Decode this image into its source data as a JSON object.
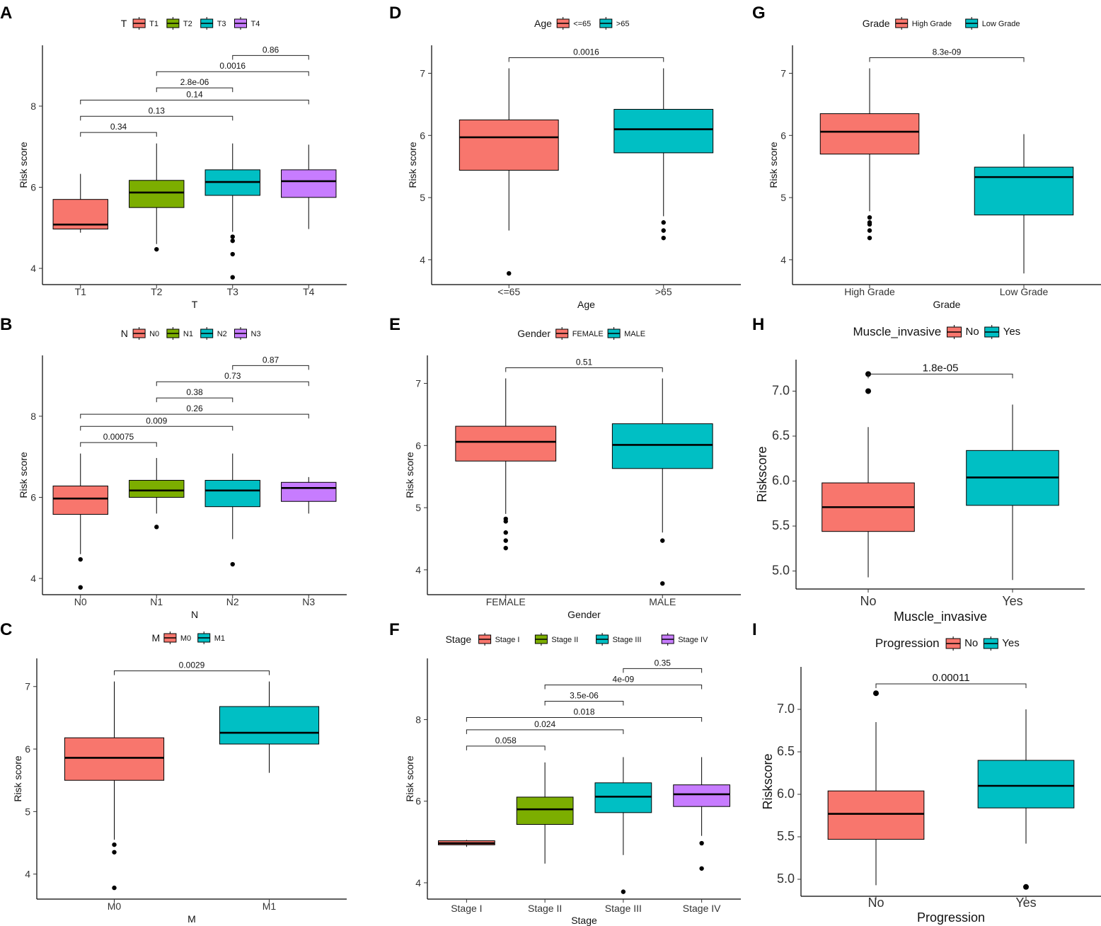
{
  "figure": {
    "colors": {
      "red": "#F8766D",
      "green": "#7CAE00",
      "teal": "#00BFC4",
      "purple": "#C77CFF"
    }
  },
  "chart_data": [
    {
      "panel": "A",
      "type": "box",
      "legend_title": "T",
      "categories": [
        "T1",
        "T2",
        "T3",
        "T4"
      ],
      "colors": [
        "#F8766D",
        "#7CAE00",
        "#00BFC4",
        "#C77CFF"
      ],
      "xlabel": "T",
      "ylabel": "Risk score",
      "ylim": [
        3.6,
        9.5
      ],
      "yticks": [
        "4",
        "6",
        "8"
      ],
      "boxes": [
        {
          "q1": 4.97,
          "median": 5.08,
          "q3": 5.7,
          "lo": 4.88,
          "hi": 6.33,
          "outliers": []
        },
        {
          "q1": 5.5,
          "median": 5.87,
          "q3": 6.17,
          "lo": 4.6,
          "hi": 7.08,
          "outliers": [
            4.47
          ]
        },
        {
          "q1": 5.8,
          "median": 6.13,
          "q3": 6.43,
          "lo": 4.9,
          "hi": 7.08,
          "outliers": [
            4.78,
            4.68,
            4.35,
            3.78
          ]
        },
        {
          "q1": 5.75,
          "median": 6.15,
          "q3": 6.43,
          "lo": 4.97,
          "hi": 7.05,
          "outliers": []
        }
      ],
      "comparisons": [
        {
          "a": 0,
          "b": 1,
          "label": "0.34",
          "y": 7.35
        },
        {
          "a": 0,
          "b": 2,
          "label": "0.13",
          "y": 7.75
        },
        {
          "a": 0,
          "b": 3,
          "label": "0.14",
          "y": 8.15
        },
        {
          "a": 1,
          "b": 2,
          "label": "2.8e-06",
          "y": 8.45
        },
        {
          "a": 1,
          "b": 3,
          "label": "0.0016",
          "y": 8.85
        },
        {
          "a": 2,
          "b": 3,
          "label": "0.86",
          "y": 9.25
        }
      ]
    },
    {
      "panel": "B",
      "type": "box",
      "legend_title": "N",
      "categories": [
        "N0",
        "N1",
        "N2",
        "N3"
      ],
      "colors": [
        "#F8766D",
        "#7CAE00",
        "#00BFC4",
        "#C77CFF"
      ],
      "xlabel": "N",
      "ylabel": "Risk score",
      "ylim": [
        3.6,
        9.5
      ],
      "yticks": [
        "4",
        "6",
        "8"
      ],
      "boxes": [
        {
          "q1": 5.58,
          "median": 5.97,
          "q3": 6.28,
          "lo": 4.6,
          "hi": 7.08,
          "outliers": [
            4.47,
            3.78
          ]
        },
        {
          "q1": 6.0,
          "median": 6.17,
          "q3": 6.42,
          "lo": 5.6,
          "hi": 6.97,
          "outliers": [
            5.27
          ]
        },
        {
          "q1": 5.77,
          "median": 6.17,
          "q3": 6.42,
          "lo": 4.97,
          "hi": 7.08,
          "outliers": [
            4.35
          ]
        },
        {
          "q1": 5.9,
          "median": 6.23,
          "q3": 6.37,
          "lo": 5.6,
          "hi": 6.5,
          "outliers": []
        }
      ],
      "comparisons": [
        {
          "a": 0,
          "b": 1,
          "label": "0.00075",
          "y": 7.35
        },
        {
          "a": 0,
          "b": 2,
          "label": "0.009",
          "y": 7.75
        },
        {
          "a": 0,
          "b": 3,
          "label": "0.26",
          "y": 8.05
        },
        {
          "a": 1,
          "b": 2,
          "label": "0.38",
          "y": 8.45
        },
        {
          "a": 1,
          "b": 3,
          "label": "0.73",
          "y": 8.85
        },
        {
          "a": 2,
          "b": 3,
          "label": "0.87",
          "y": 9.25
        }
      ]
    },
    {
      "panel": "C",
      "type": "box",
      "legend_title": "M",
      "categories": [
        "M0",
        "M1"
      ],
      "colors": [
        "#F8766D",
        "#00BFC4"
      ],
      "xlabel": "M",
      "ylabel": "Risk score",
      "ylim": [
        3.6,
        7.45
      ],
      "yticks": [
        "4",
        "5",
        "6",
        "7"
      ],
      "boxes": [
        {
          "q1": 5.5,
          "median": 5.86,
          "q3": 6.18,
          "lo": 4.55,
          "hi": 7.08,
          "outliers": [
            4.47,
            4.35,
            3.78
          ]
        },
        {
          "q1": 6.08,
          "median": 6.26,
          "q3": 6.68,
          "lo": 5.62,
          "hi": 7.08,
          "outliers": []
        }
      ],
      "comparisons": [
        {
          "a": 0,
          "b": 1,
          "label": "0.0029",
          "y": 7.25
        }
      ]
    },
    {
      "panel": "D",
      "type": "box",
      "legend_title": "Age",
      "categories": [
        "<=65",
        ">65"
      ],
      "colors": [
        "#F8766D",
        "#00BFC4"
      ],
      "xlabel": "Age",
      "ylabel": "Risk score",
      "ylim": [
        3.6,
        7.45
      ],
      "yticks": [
        "4",
        "5",
        "6",
        "7"
      ],
      "boxes": [
        {
          "q1": 5.44,
          "median": 5.97,
          "q3": 6.25,
          "lo": 4.47,
          "hi": 7.08,
          "outliers": [
            3.78
          ]
        },
        {
          "q1": 5.72,
          "median": 6.1,
          "q3": 6.42,
          "lo": 4.7,
          "hi": 7.08,
          "outliers": [
            4.6,
            4.47,
            4.35
          ]
        }
      ],
      "comparisons": [
        {
          "a": 0,
          "b": 1,
          "label": "0.0016",
          "y": 7.25
        }
      ]
    },
    {
      "panel": "E",
      "type": "box",
      "legend_title": "Gender",
      "categories": [
        "FEMALE",
        "MALE"
      ],
      "colors": [
        "#F8766D",
        "#00BFC4"
      ],
      "xlabel": "Gender",
      "ylabel": "Risk score",
      "ylim": [
        3.6,
        7.45
      ],
      "yticks": [
        "4",
        "5",
        "6",
        "7"
      ],
      "boxes": [
        {
          "q1": 5.75,
          "median": 6.06,
          "q3": 6.31,
          "lo": 4.9,
          "hi": 7.08,
          "outliers": [
            4.82,
            4.78,
            4.6,
            4.47,
            4.35
          ]
        },
        {
          "q1": 5.63,
          "median": 6.01,
          "q3": 6.35,
          "lo": 4.6,
          "hi": 7.08,
          "outliers": [
            4.47,
            3.78
          ]
        }
      ],
      "comparisons": [
        {
          "a": 0,
          "b": 1,
          "label": "0.51",
          "y": 7.25
        }
      ]
    },
    {
      "panel": "F",
      "type": "box",
      "legend_title": "Stage",
      "categories": [
        "Stage I",
        "Stage II",
        "Stage III",
        "Stage IV"
      ],
      "colors": [
        "#F8766D",
        "#7CAE00",
        "#00BFC4",
        "#C77CFF"
      ],
      "xlabel": "Stage",
      "ylabel": "Risk score",
      "ylim": [
        3.6,
        9.5
      ],
      "yticks": [
        "4",
        "6",
        "8"
      ],
      "boxes": [
        {
          "q1": 4.93,
          "median": 4.97,
          "q3": 5.03,
          "lo": 4.88,
          "hi": 5.05,
          "outliers": []
        },
        {
          "q1": 5.43,
          "median": 5.8,
          "q3": 6.1,
          "lo": 4.47,
          "hi": 6.95,
          "outliers": []
        },
        {
          "q1": 5.72,
          "median": 6.11,
          "q3": 6.45,
          "lo": 4.68,
          "hi": 7.08,
          "outliers": [
            3.78
          ]
        },
        {
          "q1": 5.87,
          "median": 6.17,
          "q3": 6.4,
          "lo": 5.15,
          "hi": 7.08,
          "outliers": [
            4.97,
            4.35
          ]
        }
      ],
      "comparisons": [
        {
          "a": 0,
          "b": 1,
          "label": "0.058",
          "y": 7.35
        },
        {
          "a": 0,
          "b": 2,
          "label": "0.024",
          "y": 7.75
        },
        {
          "a": 0,
          "b": 3,
          "label": "0.018",
          "y": 8.05
        },
        {
          "a": 1,
          "b": 2,
          "label": "3.5e-06",
          "y": 8.45
        },
        {
          "a": 1,
          "b": 3,
          "label": "4e-09",
          "y": 8.85
        },
        {
          "a": 2,
          "b": 3,
          "label": "0.35",
          "y": 9.25
        }
      ]
    },
    {
      "panel": "G",
      "type": "box",
      "legend_title": "Grade",
      "categories": [
        "High Grade",
        "Low Grade"
      ],
      "colors": [
        "#F8766D",
        "#00BFC4"
      ],
      "xlabel": "Grade",
      "ylabel": "Risk score",
      "ylim": [
        3.6,
        7.45
      ],
      "yticks": [
        "4",
        "5",
        "6",
        "7"
      ],
      "boxes": [
        {
          "q1": 5.7,
          "median": 6.06,
          "q3": 6.35,
          "lo": 4.78,
          "hi": 7.08,
          "outliers": [
            4.68,
            4.6,
            4.57,
            4.47,
            4.35
          ]
        },
        {
          "q1": 4.72,
          "median": 5.33,
          "q3": 5.49,
          "lo": 3.78,
          "hi": 6.02,
          "outliers": []
        }
      ],
      "comparisons": [
        {
          "a": 0,
          "b": 1,
          "label": "8.3e-09",
          "y": 7.25
        }
      ]
    },
    {
      "panel": "H",
      "type": "box",
      "legend_title": "Muscle_invasive",
      "categories": [
        "No",
        "Yes"
      ],
      "colors": [
        "#F8766D",
        "#00BFC4"
      ],
      "xlabel": "Muscle_invasive",
      "ylabel": "Riskscore",
      "ylim": [
        4.8,
        7.35
      ],
      "yticks": [
        "5.0",
        "5.5",
        "6.0",
        "6.5",
        "7.0"
      ],
      "boxes": [
        {
          "q1": 5.44,
          "median": 5.71,
          "q3": 5.98,
          "lo": 4.93,
          "hi": 6.6,
          "outliers": [
            7.19,
            7.0
          ]
        },
        {
          "q1": 5.73,
          "median": 6.04,
          "q3": 6.34,
          "lo": 4.9,
          "hi": 6.85,
          "outliers": []
        }
      ],
      "comparisons": [
        {
          "a": 0,
          "b": 1,
          "label": "1.8e-05",
          "y": 7.19
        }
      ]
    },
    {
      "panel": "I",
      "type": "box",
      "legend_title": "Progression",
      "categories": [
        "No",
        "Yes"
      ],
      "colors": [
        "#F8766D",
        "#00BFC4"
      ],
      "xlabel": "Progression",
      "ylabel": "Riskscore",
      "ylim": [
        4.8,
        7.5
      ],
      "yticks": [
        "5.0",
        "5.5",
        "6.0",
        "6.5",
        "7.0"
      ],
      "boxes": [
        {
          "q1": 5.47,
          "median": 5.77,
          "q3": 6.04,
          "lo": 4.93,
          "hi": 6.85,
          "outliers": [
            7.19
          ]
        },
        {
          "q1": 5.84,
          "median": 6.1,
          "q3": 6.4,
          "lo": 5.42,
          "hi": 7.0,
          "outliers": [
            4.91
          ]
        }
      ],
      "comparisons": [
        {
          "a": 0,
          "b": 1,
          "label": "0.00011",
          "y": 7.3
        }
      ]
    }
  ]
}
